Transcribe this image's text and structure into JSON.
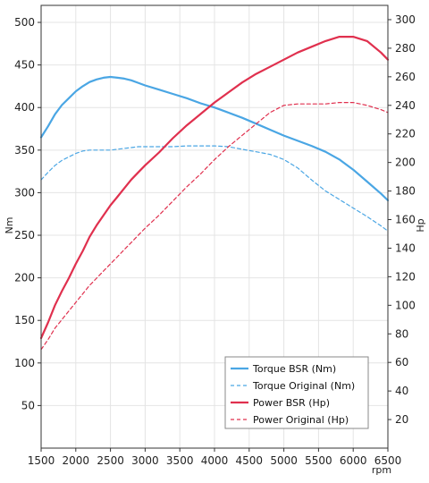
{
  "chart_data": {
    "type": "line",
    "title": "",
    "xlabel": "rpm",
    "ylabel_left": "Nm",
    "ylabel_right": "Hp",
    "xlim": [
      1500,
      6500
    ],
    "ylim_left": [
      0,
      520
    ],
    "ylim_right": [
      0,
      310
    ],
    "x_ticks": [
      1500,
      2000,
      2500,
      3000,
      3500,
      4000,
      4500,
      5000,
      5500,
      6000,
      6500
    ],
    "y_left_ticks": [
      50,
      100,
      150,
      200,
      250,
      300,
      350,
      400,
      450,
      500
    ],
    "y_right_ticks": [
      20,
      40,
      60,
      80,
      100,
      120,
      140,
      160,
      180,
      200,
      220,
      240,
      260,
      280,
      300
    ],
    "grid": true,
    "legend_position": "bottom-right",
    "series": [
      {
        "name": "Torque BSR (Nm)",
        "axis": "left",
        "color": "#4aa6e4",
        "style": "solid",
        "x": [
          1500,
          1600,
          1700,
          1800,
          1900,
          2000,
          2100,
          2200,
          2300,
          2400,
          2500,
          2600,
          2700,
          2800,
          2900,
          3000,
          3200,
          3400,
          3600,
          3800,
          4000,
          4200,
          4400,
          4600,
          4800,
          5000,
          5200,
          5400,
          5600,
          5800,
          6000,
          6200,
          6400,
          6500
        ],
        "y": [
          365,
          378,
          392,
          403,
          411,
          419,
          425,
          430,
          433,
          435,
          436,
          435,
          434,
          432,
          429,
          426,
          421,
          416,
          411,
          405,
          400,
          394,
          388,
          381,
          374,
          367,
          361,
          355,
          348,
          339,
          327,
          313,
          299,
          291
        ]
      },
      {
        "name": "Torque Original (Nm)",
        "axis": "left",
        "color": "#4aa6e4",
        "style": "dashed",
        "x": [
          1500,
          1600,
          1700,
          1800,
          1900,
          2000,
          2100,
          2200,
          2300,
          2400,
          2500,
          2600,
          2700,
          2800,
          2900,
          3000,
          3200,
          3400,
          3600,
          3800,
          4000,
          4200,
          4400,
          4600,
          4800,
          5000,
          5200,
          5400,
          5600,
          5800,
          6000,
          6200,
          6400,
          6500
        ],
        "y": [
          315,
          324,
          332,
          338,
          342,
          346,
          349,
          350,
          350,
          350,
          350,
          351,
          352,
          353,
          354,
          354,
          354,
          354,
          355,
          355,
          355,
          354,
          351,
          348,
          345,
          339,
          329,
          315,
          302,
          292,
          282,
          272,
          261,
          255
        ]
      },
      {
        "name": "Power BSR (Hp)",
        "axis": "right",
        "color": "#e0304e",
        "style": "solid",
        "x": [
          1500,
          1600,
          1700,
          1800,
          1900,
          2000,
          2100,
          2200,
          2300,
          2400,
          2500,
          2600,
          2700,
          2800,
          2900,
          3000,
          3200,
          3400,
          3600,
          3800,
          4000,
          4200,
          4400,
          4600,
          4800,
          5000,
          5200,
          5400,
          5600,
          5800,
          6000,
          6200,
          6400,
          6500
        ],
        "y": [
          77,
          88,
          100,
          110,
          119,
          129,
          138,
          148,
          156,
          163,
          170,
          176,
          182,
          188,
          193,
          198,
          207,
          217,
          226,
          234,
          242,
          249,
          256,
          262,
          267,
          272,
          277,
          281,
          285,
          288,
          288,
          285,
          277,
          272
        ]
      },
      {
        "name": "Power Original (Hp)",
        "axis": "right",
        "color": "#e0304e",
        "style": "dashed",
        "x": [
          1500,
          1600,
          1700,
          1800,
          1900,
          2000,
          2100,
          2200,
          2300,
          2400,
          2500,
          2600,
          2700,
          2800,
          2900,
          3000,
          3200,
          3400,
          3600,
          3800,
          4000,
          4200,
          4400,
          4600,
          4800,
          5000,
          5200,
          5400,
          5600,
          5800,
          6000,
          6200,
          6400,
          6500
        ],
        "y": [
          69,
          76,
          84,
          90,
          96,
          102,
          108,
          114,
          119,
          124,
          129,
          134,
          139,
          144,
          149,
          154,
          163,
          173,
          183,
          192,
          202,
          211,
          219,
          227,
          235,
          240,
          241,
          241,
          241,
          242,
          242,
          240,
          237,
          235
        ]
      }
    ]
  }
}
